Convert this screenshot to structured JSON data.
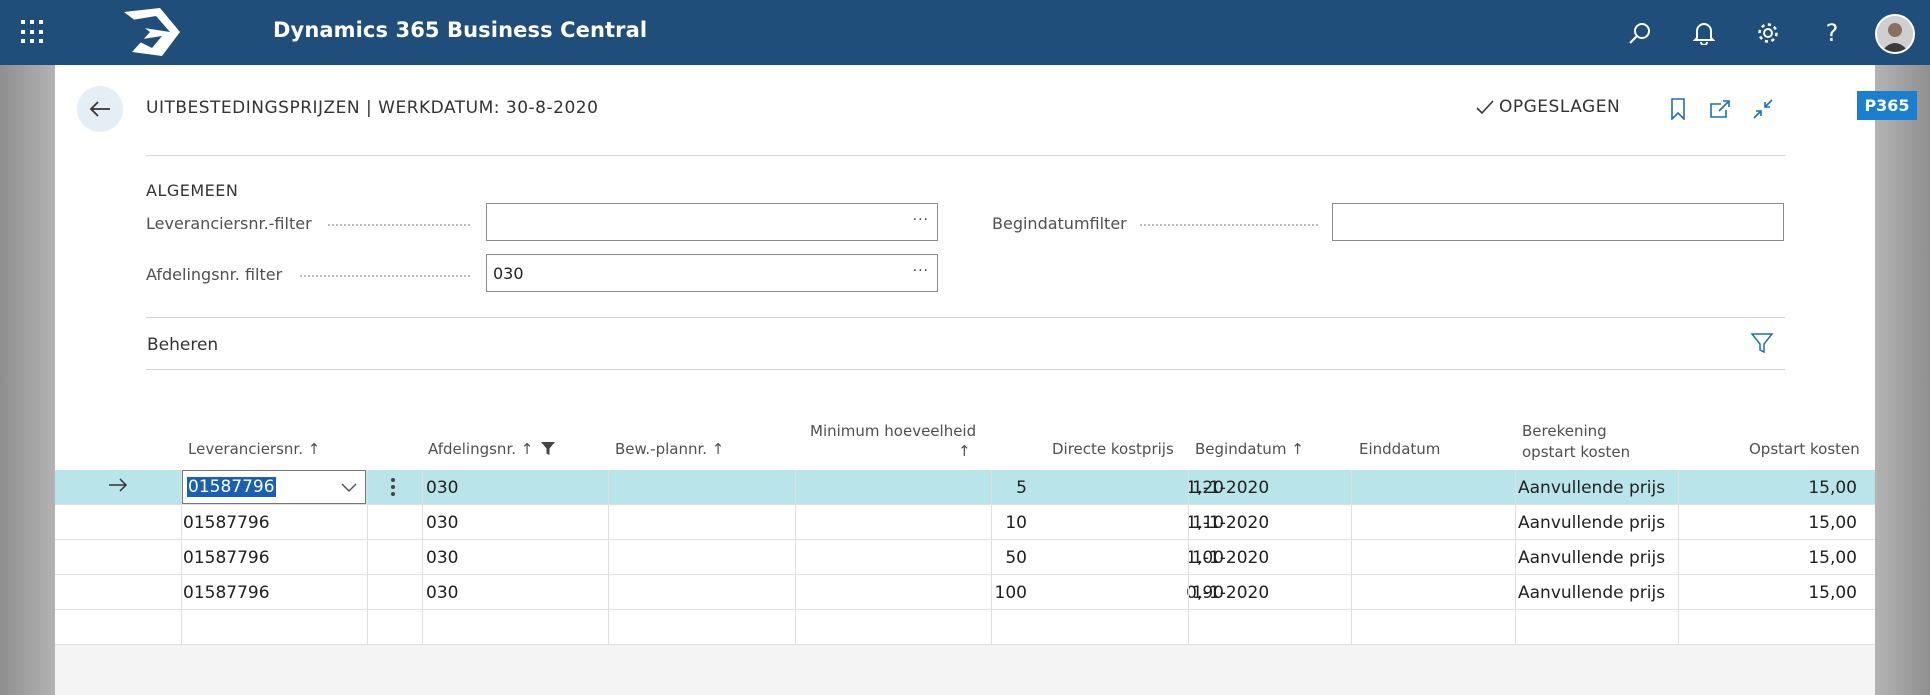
{
  "app": {
    "title": "Dynamics 365 Business Central"
  },
  "page": {
    "title": "UITBESTEDINGSPRIJZEN | WERKDATUM: 30-8-2020",
    "status": "OPGESLAGEN",
    "badge": "P365"
  },
  "general": {
    "section_title": "ALGEMEEN",
    "vendor_filter_label": "Leveranciersnr.-filter",
    "vendor_filter_value": "",
    "department_filter_label": "Afdelingsnr. filter",
    "department_filter_value": "030",
    "start_date_filter_label": "Begindatumfilter",
    "start_date_filter_value": "",
    "ellipsis": "···"
  },
  "manage": {
    "label": "Beheren"
  },
  "table": {
    "headers": {
      "vendor": "Leveranciersnr. ↑",
      "department": "Afdelingsnr. ↑",
      "routing": "Bew.-plannr. ↑",
      "min_qty_line1": "Minimum hoeveelheid",
      "min_qty_line2": "↑",
      "direct_cost": "Directe kostprijs",
      "start_date": "Begindatum ↑",
      "end_date": "Einddatum",
      "calc_line1": "Berekening",
      "calc_line2": "opstart kosten",
      "setup_cost": "Opstart kosten"
    },
    "rows": [
      {
        "vendor": "01587796",
        "department": "030",
        "routing": "",
        "min_qty": "5",
        "direct_cost": "1,20",
        "start_date": "1-1-2020",
        "end_date": "",
        "calc": "Aanvullende prijs",
        "setup_cost": "15,00"
      },
      {
        "vendor": "01587796",
        "department": "030",
        "routing": "",
        "min_qty": "10",
        "direct_cost": "1,10",
        "start_date": "1-1-2020",
        "end_date": "",
        "calc": "Aanvullende prijs",
        "setup_cost": "15,00"
      },
      {
        "vendor": "01587796",
        "department": "030",
        "routing": "",
        "min_qty": "50",
        "direct_cost": "1,00",
        "start_date": "1-1-2020",
        "end_date": "",
        "calc": "Aanvullende prijs",
        "setup_cost": "15,00"
      },
      {
        "vendor": "01587796",
        "department": "030",
        "routing": "",
        "min_qty": "100",
        "direct_cost": "0,90",
        "start_date": "1-1-2020",
        "end_date": "",
        "calc": "Aanvullende prijs",
        "setup_cost": "15,00"
      }
    ]
  },
  "icons": {
    "waffle": "app-launcher-icon",
    "search": "search-icon",
    "bell": "notification-icon",
    "gear": "settings-icon",
    "help": "help-icon",
    "back": "back-arrow-icon",
    "check": "check-icon",
    "bookmark": "bookmark-icon",
    "share": "open-in-new-icon",
    "collapse": "collapse-icon",
    "filter": "filter-icon",
    "row_arrow": "current-row-arrow-icon",
    "kebab": "more-options-icon",
    "dropdown": "chevron-down-icon"
  },
  "colors": {
    "topbar": "#1e4e79",
    "selected_row": "#b9e4ea",
    "badge": "#1a7fd1",
    "selection_highlight": "#1a5fb4"
  }
}
